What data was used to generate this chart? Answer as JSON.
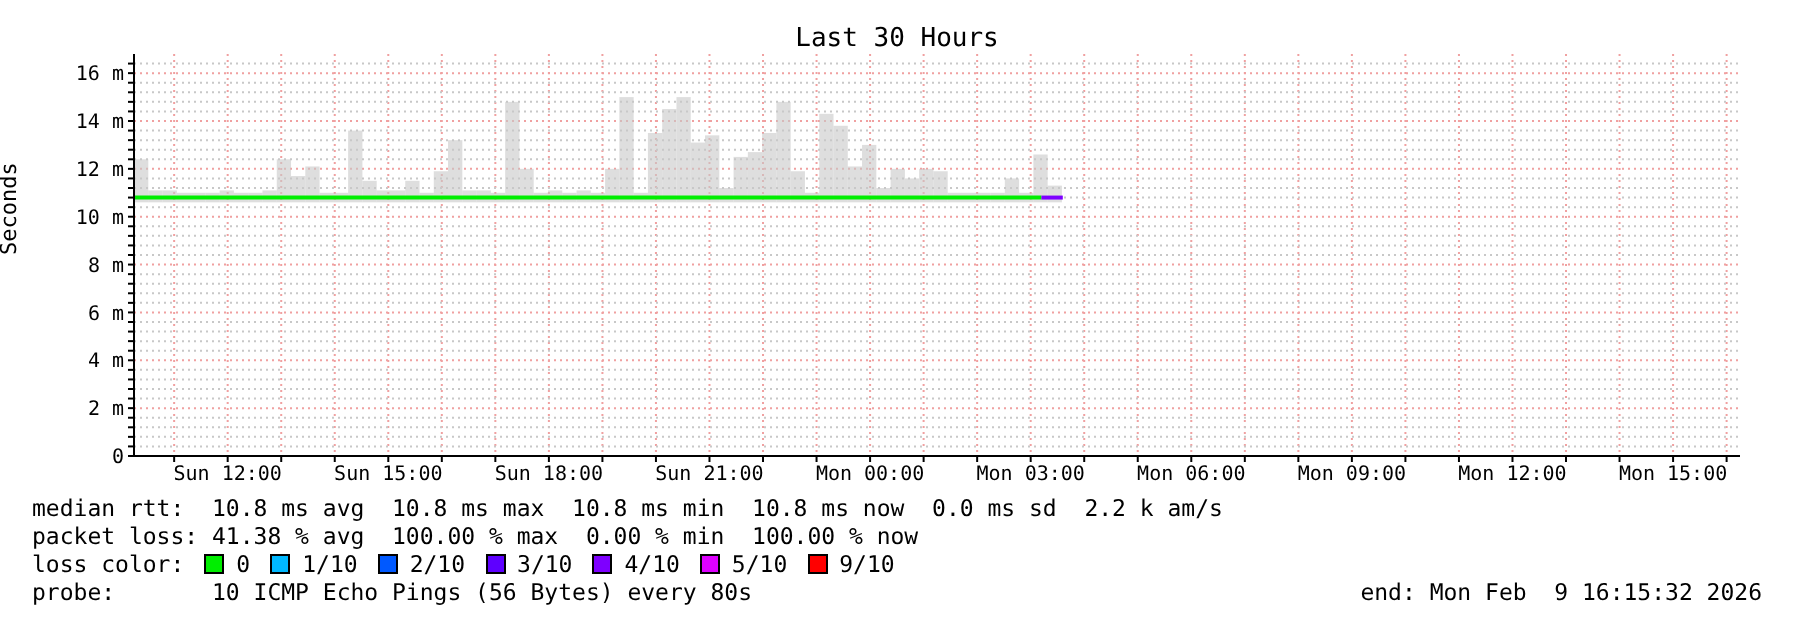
{
  "chart_data": {
    "type": "bar",
    "title": "Last 30 Hours",
    "ylabel": "Seconds",
    "legend_title": "loss color:",
    "legend": "bottom",
    "grid": true,
    "x": [
      "2026-02-08T10:23",
      "2026-02-08T10:39",
      "2026-02-08T10:55",
      "2026-02-08T11:11",
      "2026-02-08T11:27",
      "2026-02-08T11:43",
      "2026-02-08T11:59",
      "2026-02-08T12:15",
      "2026-02-08T12:31",
      "2026-02-08T12:47",
      "2026-02-08T13:03",
      "2026-02-08T13:19",
      "2026-02-08T13:35",
      "2026-02-08T13:51",
      "2026-02-08T14:07",
      "2026-02-08T14:23",
      "2026-02-08T14:39",
      "2026-02-08T14:55",
      "2026-02-08T15:11",
      "2026-02-08T15:27",
      "2026-02-08T15:43",
      "2026-02-08T15:59",
      "2026-02-08T16:15",
      "2026-02-08T16:31",
      "2026-02-08T16:47",
      "2026-02-08T17:03",
      "2026-02-08T17:19",
      "2026-02-08T17:35",
      "2026-02-08T17:51",
      "2026-02-08T18:07",
      "2026-02-08T18:23",
      "2026-02-08T18:39",
      "2026-02-08T18:55",
      "2026-02-08T19:11",
      "2026-02-08T19:27",
      "2026-02-08T19:43",
      "2026-02-08T19:59",
      "2026-02-08T20:15",
      "2026-02-08T20:31",
      "2026-02-08T20:47",
      "2026-02-08T21:03",
      "2026-02-08T21:19",
      "2026-02-08T21:35",
      "2026-02-08T21:51",
      "2026-02-08T22:07",
      "2026-02-08T22:23",
      "2026-02-08T22:39",
      "2026-02-08T22:55",
      "2026-02-08T23:11",
      "2026-02-08T23:27",
      "2026-02-08T23:43",
      "2026-02-08T23:59",
      "2026-02-09T00:15",
      "2026-02-09T00:31",
      "2026-02-09T00:47",
      "2026-02-09T01:03",
      "2026-02-09T01:19",
      "2026-02-09T01:35",
      "2026-02-09T01:51",
      "2026-02-09T02:07",
      "2026-02-09T02:23",
      "2026-02-09T02:39",
      "2026-02-09T02:55",
      "2026-02-09T03:11",
      "2026-02-09T03:27"
    ],
    "base": [
      10.6,
      10.6,
      10.6,
      10.6,
      10.6,
      10.6,
      10.6,
      10.6,
      10.6,
      10.6,
      10.6,
      10.6,
      10.6,
      10.6,
      10.6,
      10.6,
      10.6,
      10.6,
      10.6,
      10.6,
      10.6,
      10.6,
      10.6,
      10.6,
      10.6,
      10.6,
      10.6,
      10.6,
      10.6,
      10.6,
      10.6,
      10.6,
      10.6,
      10.6,
      10.6,
      10.6,
      10.6,
      10.6,
      10.6,
      10.6,
      10.6,
      10.6,
      10.6,
      10.6,
      10.6,
      10.6,
      10.6,
      10.6,
      10.6,
      10.6,
      10.6,
      10.6,
      10.6,
      10.6,
      10.6,
      10.6,
      10.6,
      10.6,
      10.6,
      10.6,
      10.6,
      10.6,
      10.6,
      10.6,
      10.6
    ],
    "values": [
      1.8,
      0.5,
      0.5,
      0.4,
      0.4,
      0.4,
      0.5,
      0.4,
      0.4,
      0.5,
      1.8,
      1.1,
      1.5,
      0.4,
      0.4,
      3.0,
      0.9,
      0.5,
      0.5,
      0.9,
      0.4,
      1.3,
      2.6,
      0.5,
      0.5,
      0.4,
      4.2,
      1.4,
      0.4,
      0.5,
      0.4,
      0.5,
      0.4,
      1.4,
      4.4,
      0.4,
      2.9,
      3.9,
      4.4,
      2.5,
      2.8,
      0.6,
      1.9,
      2.1,
      2.9,
      4.2,
      1.3,
      0.4,
      3.7,
      3.2,
      1.5,
      2.4,
      0.6,
      1.4,
      1.0,
      1.4,
      1.3,
      0.4,
      0.4,
      0.4,
      0.4,
      1.0,
      0.4,
      2.0,
      0.7
    ],
    "color": "#c8c8c8",
    "series": [
      {
        "name": "0",
        "type": "line",
        "color": "#00ee00",
        "x": [
          "2026-02-08T10:15",
          "2026-02-09T03:12"
        ],
        "values": [
          10.8,
          10.8
        ]
      },
      {
        "name": "1/10",
        "type": "line",
        "color": "#00b8ff",
        "values": [
          null,
          null,
          null,
          null,
          null,
          null,
          null,
          null,
          null,
          null,
          null,
          null,
          null,
          null,
          null,
          null,
          null,
          null,
          null,
          null,
          null,
          null,
          null,
          null,
          null,
          null,
          null,
          null,
          null,
          null,
          null,
          null,
          null,
          null,
          null,
          null,
          null,
          null,
          null,
          null,
          null,
          null,
          null,
          null,
          null,
          null,
          null,
          null,
          null,
          null,
          null,
          null,
          null,
          null,
          null,
          null,
          null,
          null,
          null,
          null,
          null,
          null,
          null,
          null,
          null
        ]
      },
      {
        "name": "2/10",
        "type": "line",
        "color": "#0059ff",
        "values": [
          null,
          null,
          null,
          null,
          null,
          null,
          null,
          null,
          null,
          null,
          null,
          null,
          null,
          null,
          null,
          null,
          null,
          null,
          null,
          null,
          null,
          null,
          null,
          null,
          null,
          null,
          null,
          null,
          null,
          null,
          null,
          null,
          null,
          null,
          null,
          null,
          null,
          null,
          null,
          null,
          null,
          null,
          null,
          null,
          null,
          null,
          null,
          null,
          null,
          null,
          null,
          null,
          null,
          null,
          null,
          null,
          null,
          null,
          null,
          null,
          null,
          null,
          null,
          null,
          null
        ]
      },
      {
        "name": "3/10",
        "type": "line",
        "color": "#5e00ff",
        "values": [
          null,
          null,
          null,
          null,
          null,
          null,
          null,
          null,
          null,
          null,
          null,
          null,
          null,
          null,
          null,
          null,
          null,
          null,
          null,
          null,
          null,
          null,
          null,
          null,
          null,
          null,
          null,
          null,
          null,
          null,
          null,
          null,
          null,
          null,
          null,
          null,
          null,
          null,
          null,
          null,
          null,
          null,
          null,
          null,
          null,
          null,
          null,
          null,
          null,
          null,
          null,
          null,
          null,
          null,
          null,
          null,
          null,
          null,
          null,
          null,
          null,
          null,
          null,
          null,
          null
        ]
      },
      {
        "name": "4/10",
        "type": "line",
        "color": "#7e00ff",
        "x": [
          "2026-02-09T03:12",
          "2026-02-09T03:36"
        ],
        "values": [
          10.8,
          10.8
        ]
      },
      {
        "name": "5/10",
        "type": "line",
        "color": "#dd00ff",
        "values": [
          null,
          null,
          null,
          null,
          null,
          null,
          null,
          null,
          null,
          null,
          null,
          null,
          null,
          null,
          null,
          null,
          null,
          null,
          null,
          null,
          null,
          null,
          null,
          null,
          null,
          null,
          null,
          null,
          null,
          null,
          null,
          null,
          null,
          null,
          null,
          null,
          null,
          null,
          null,
          null,
          null,
          null,
          null,
          null,
          null,
          null,
          null,
          null,
          null,
          null,
          null,
          null,
          null,
          null,
          null,
          null,
          null,
          null,
          null,
          null,
          null,
          null,
          null,
          null,
          null
        ]
      },
      {
        "name": "9/10",
        "type": "line",
        "color": "#ff0000",
        "values": [
          null,
          null,
          null,
          null,
          null,
          null,
          null,
          null,
          null,
          null,
          null,
          null,
          null,
          null,
          null,
          null,
          null,
          null,
          null,
          null,
          null,
          null,
          null,
          null,
          null,
          null,
          null,
          null,
          null,
          null,
          null,
          null,
          null,
          null,
          null,
          null,
          null,
          null,
          null,
          null,
          null,
          null,
          null,
          null,
          null,
          null,
          null,
          null,
          null,
          null,
          null,
          null,
          null,
          null,
          null,
          null,
          null,
          null,
          null,
          null,
          null,
          null,
          null,
          null,
          null
        ]
      }
    ],
    "xlim": [
      "2026-02-08T10:15",
      "2026-02-09T16:15"
    ],
    "xticks": [
      {
        "value": "2026-02-08T11:00",
        "label": null
      },
      {
        "value": "2026-02-08T12:00",
        "label": "Sun 12:00"
      },
      {
        "value": "2026-02-08T13:00",
        "label": null
      },
      {
        "value": "2026-02-08T14:00",
        "label": null
      },
      {
        "value": "2026-02-08T15:00",
        "label": "Sun 15:00"
      },
      {
        "value": "2026-02-08T16:00",
        "label": null
      },
      {
        "value": "2026-02-08T17:00",
        "label": null
      },
      {
        "value": "2026-02-08T18:00",
        "label": "Sun 18:00"
      },
      {
        "value": "2026-02-08T19:00",
        "label": null
      },
      {
        "value": "2026-02-08T20:00",
        "label": null
      },
      {
        "value": "2026-02-08T21:00",
        "label": "Sun 21:00"
      },
      {
        "value": "2026-02-08T22:00",
        "label": null
      },
      {
        "value": "2026-02-08T23:00",
        "label": null
      },
      {
        "value": "2026-02-09T00:00",
        "label": "Mon 00:00"
      },
      {
        "value": "2026-02-09T01:00",
        "label": null
      },
      {
        "value": "2026-02-09T02:00",
        "label": null
      },
      {
        "value": "2026-02-09T03:00",
        "label": "Mon 03:00"
      },
      {
        "value": "2026-02-09T04:00",
        "label": null
      },
      {
        "value": "2026-02-09T05:00",
        "label": null
      },
      {
        "value": "2026-02-09T06:00",
        "label": "Mon 06:00"
      },
      {
        "value": "2026-02-09T07:00",
        "label": null
      },
      {
        "value": "2026-02-09T08:00",
        "label": null
      },
      {
        "value": "2026-02-09T09:00",
        "label": "Mon 09:00"
      },
      {
        "value": "2026-02-09T10:00",
        "label": null
      },
      {
        "value": "2026-02-09T11:00",
        "label": null
      },
      {
        "value": "2026-02-09T12:00",
        "label": "Mon 12:00"
      },
      {
        "value": "2026-02-09T13:00",
        "label": null
      },
      {
        "value": "2026-02-09T14:00",
        "label": null
      },
      {
        "value": "2026-02-09T15:00",
        "label": "Mon 15:00"
      },
      {
        "value": "2026-02-09T16:00",
        "label": null
      }
    ],
    "ylim": [
      0,
      16.8
    ],
    "yticks": [
      0,
      {
        "value": 0.4,
        "label": null
      },
      {
        "value": 0.8,
        "label": null
      },
      {
        "value": 1.2,
        "label": null
      },
      {
        "value": 1.6,
        "label": null
      },
      {
        "value": 2,
        "label": "2 m"
      },
      {
        "value": 2.4,
        "label": null
      },
      {
        "value": 2.8,
        "label": null
      },
      {
        "value": 3.2,
        "label": null
      },
      {
        "value": 3.6,
        "label": null
      },
      {
        "value": 4,
        "label": "4 m"
      },
      {
        "value": 4.4,
        "label": null
      },
      {
        "value": 4.8,
        "label": null
      },
      {
        "value": 5.2,
        "label": null
      },
      {
        "value": 5.6,
        "label": null
      },
      {
        "value": 6,
        "label": "6 m"
      },
      {
        "value": 6.4,
        "label": null
      },
      {
        "value": 6.8,
        "label": null
      },
      {
        "value": 7.2,
        "label": null
      },
      {
        "value": 7.6,
        "label": null
      },
      {
        "value": 8,
        "label": "8 m"
      },
      {
        "value": 8.4,
        "label": null
      },
      {
        "value": 8.8,
        "label": null
      },
      {
        "value": 9.2,
        "label": null
      },
      {
        "value": 9.6,
        "label": null
      },
      {
        "value": 10,
        "label": "10 m"
      },
      {
        "value": 10.4,
        "label": null
      },
      {
        "value": 10.8,
        "label": null
      },
      {
        "value": 11.2,
        "label": null
      },
      {
        "value": 11.6,
        "label": null
      },
      {
        "value": 12,
        "label": "12 m"
      },
      {
        "value": 12.4,
        "label": null
      },
      {
        "value": 12.8,
        "label": null
      },
      {
        "value": 13.2,
        "label": null
      },
      {
        "value": 13.6,
        "label": null
      },
      {
        "value": 14,
        "label": "14 m"
      },
      {
        "value": 14.4,
        "label": null
      },
      {
        "value": 14.8,
        "label": null
      },
      {
        "value": 15.2,
        "label": null
      },
      {
        "value": 15.6,
        "label": null
      },
      {
        "value": 16,
        "label": "16 m"
      },
      {
        "value": 16.4,
        "label": null
      }
    ],
    "annotations": [
      "median rtt:  10.8 ms avg  10.8 ms max  10.8 ms min  10.8 ms now  0.0 ms sd  2.2 k am/s",
      "packet loss: 41.38 % avg  100.00 % max  0.00 % min  100.00 % now",
      "probe:       10 ICMP Echo Pings (56 Bytes) every 80s",
      "end: Mon Feb  9 16:15:32 2026"
    ]
  }
}
